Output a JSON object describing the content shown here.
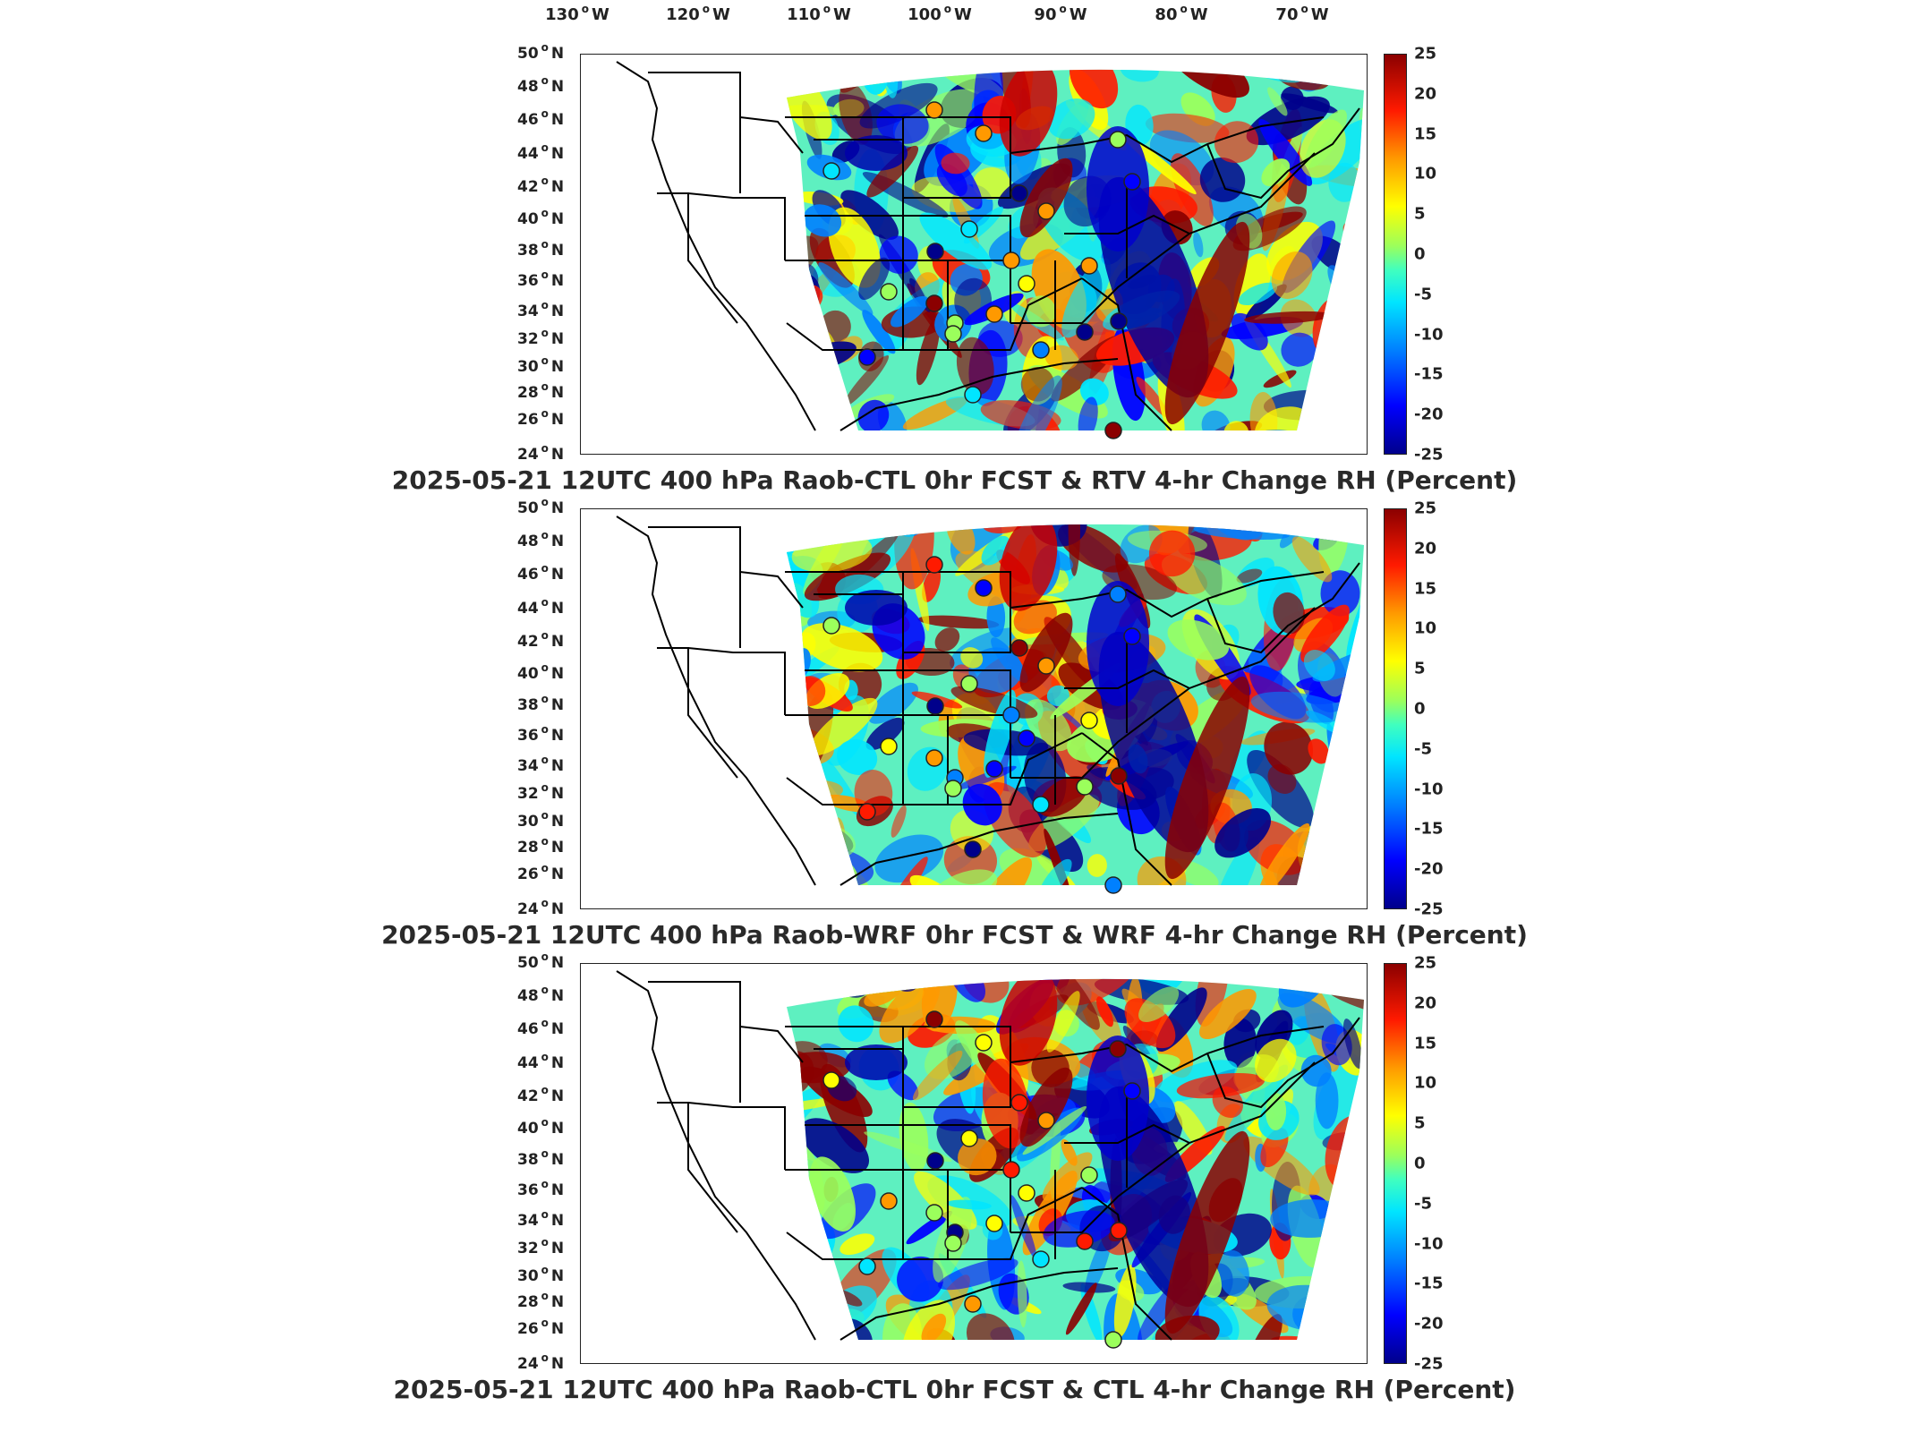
{
  "lon_labels": [
    "130",
    "120",
    "110",
    "100",
    "90",
    "80",
    "70"
  ],
  "lon_suffix": "W",
  "lat_labels": [
    "50",
    "48",
    "46",
    "44",
    "42",
    "40",
    "38",
    "36",
    "34",
    "32",
    "30",
    "28",
    "26",
    "24"
  ],
  "lat_suffix": "N",
  "colorbar_labels": [
    "25",
    "20",
    "15",
    "10",
    "5",
    "0",
    "-5",
    "-10",
    "-15",
    "-20",
    "-25"
  ],
  "colormap": [
    "#00008b",
    "#0000ff",
    "#0080ff",
    "#00e5ff",
    "#9bff5c",
    "#ffff00",
    "#ff9900",
    "#ff1a00",
    "#8b0000"
  ],
  "panels": [
    {
      "title": "2025-05-21 12UTC 400 hPa Raob-CTL 0hr FCST & RTV 4-hr Change RH (Percent)"
    },
    {
      "title": "2025-05-21 12UTC 400 hPa Raob-WRF 0hr FCST & WRF 4-hr Change RH (Percent)"
    },
    {
      "title": "2025-05-21 12UTC 400 hPa Raob-CTL 0hr FCST & CTL 4-hr Change RH (Percent)"
    }
  ]
}
